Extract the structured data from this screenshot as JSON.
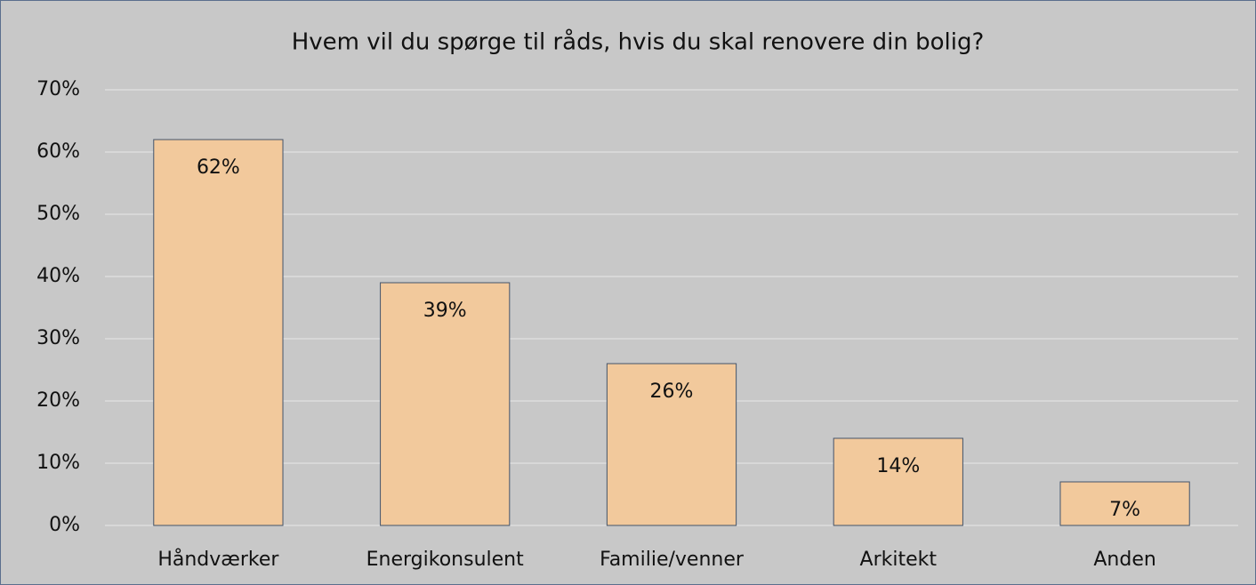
{
  "chart_data": {
    "type": "bar",
    "title": "Hvem vil du spørge til råds, hvis du skal renovere din bolig?",
    "categories": [
      "Håndværker",
      "Energikonsulent",
      "Familie/venner",
      "Arkitekt",
      "Anden"
    ],
    "values": [
      62,
      39,
      26,
      14,
      7
    ],
    "value_labels": [
      "62%",
      "39%",
      "26%",
      "14%",
      "7%"
    ],
    "color": "#f2c99c",
    "ylim": [
      0,
      70
    ],
    "yticks": [
      {
        "value": 0,
        "label": "0%"
      },
      {
        "value": 10,
        "label": "10%"
      },
      {
        "value": 20,
        "label": "20%"
      },
      {
        "value": 30,
        "label": "30%"
      },
      {
        "value": 40,
        "label": "40%"
      },
      {
        "value": 50,
        "label": "50%"
      },
      {
        "value": 60,
        "label": "60%"
      },
      {
        "value": 70,
        "label": "70%"
      }
    ],
    "grid": true
  }
}
